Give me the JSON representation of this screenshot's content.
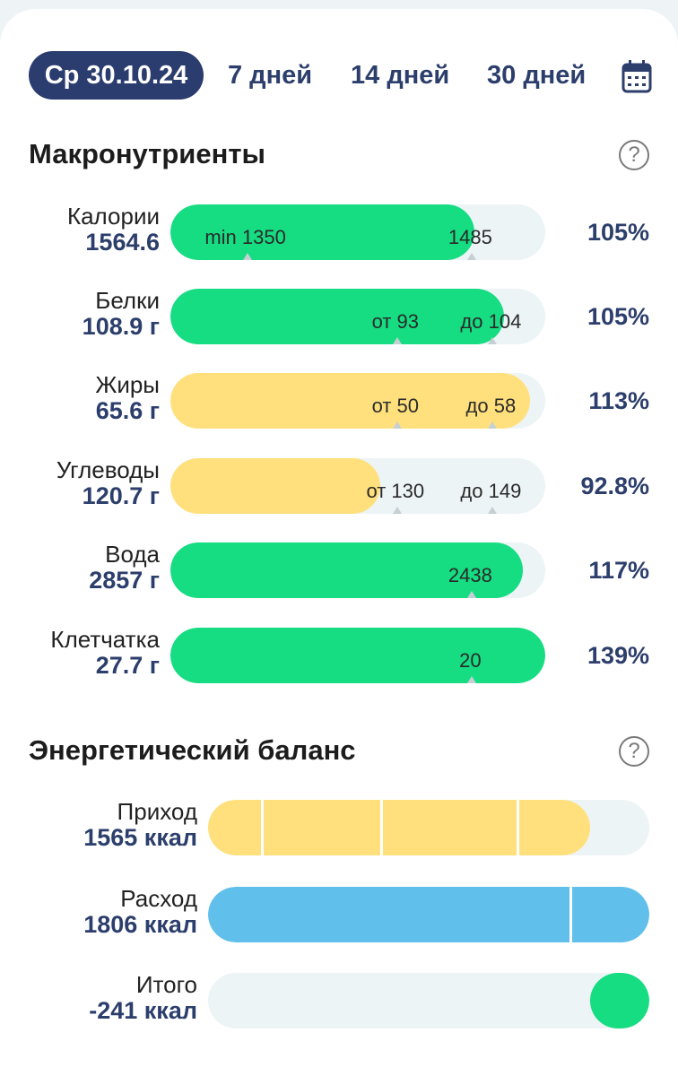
{
  "tabs": [
    {
      "label": "Ср 30.10.24",
      "active": true
    },
    {
      "label": "7 дней"
    },
    {
      "label": "14 дней"
    },
    {
      "label": "30 дней"
    }
  ],
  "icons": {
    "calendar": "calendar-icon",
    "help": "help-circle-icon"
  },
  "colors": {
    "green": "#16dc82",
    "yellow": "#ffe07c",
    "blue": "#60bfeb",
    "navy": "#2b3c6e"
  },
  "macros": {
    "title": "Макронутриенты",
    "help": "?",
    "rows": [
      {
        "name": "Калории",
        "value": "1564.6",
        "percent": "105%",
        "fill": 0.81,
        "color": "green",
        "marks": [
          {
            "text": "min 1350",
            "pos": 0.2
          },
          {
            "text": "1485",
            "pos": 0.8
          }
        ]
      },
      {
        "name": "Белки",
        "value": "108.9 г",
        "percent": "105%",
        "fill": 0.89,
        "color": "green",
        "marks": [
          {
            "text": "от 93",
            "pos": 0.6
          },
          {
            "text": "до 104",
            "pos": 0.855
          }
        ]
      },
      {
        "name": "Жиры",
        "value": "65.6 г",
        "percent": "113%",
        "fill": 0.96,
        "color": "yellow",
        "marks": [
          {
            "text": "от 50",
            "pos": 0.6
          },
          {
            "text": "до 58",
            "pos": 0.855
          }
        ]
      },
      {
        "name": "Углеводы",
        "value": "120.7 г",
        "percent": "92.8%",
        "fill": 0.56,
        "color": "yellow",
        "marks": [
          {
            "text": "от 130",
            "pos": 0.6
          },
          {
            "text": "до 149",
            "pos": 0.855
          }
        ]
      },
      {
        "name": "Вода",
        "value": "2857 г",
        "percent": "117%",
        "fill": 0.94,
        "color": "green",
        "marks": [
          {
            "text": "2438",
            "pos": 0.8
          }
        ]
      },
      {
        "name": "Клетчатка",
        "value": "27.7 г",
        "percent": "139%",
        "fill": 1.0,
        "color": "green",
        "marks": [
          {
            "text": "20",
            "pos": 0.8
          }
        ]
      }
    ]
  },
  "energy": {
    "title": "Энергетический баланс",
    "help": "?",
    "rows": [
      {
        "name": "Приход",
        "value": "1565 ккал",
        "fill": 0.865,
        "color": "yellow",
        "dividers": [
          0.12,
          0.39,
          0.7
        ]
      },
      {
        "name": "Расход",
        "value": "1806 ккал",
        "fill": 1.0,
        "color": "blue",
        "dividers": [
          0.82
        ]
      },
      {
        "name": "Итого",
        "value": "-241 ккал",
        "fill": 0.135,
        "color": "green",
        "align": "right",
        "dividers": []
      }
    ]
  }
}
